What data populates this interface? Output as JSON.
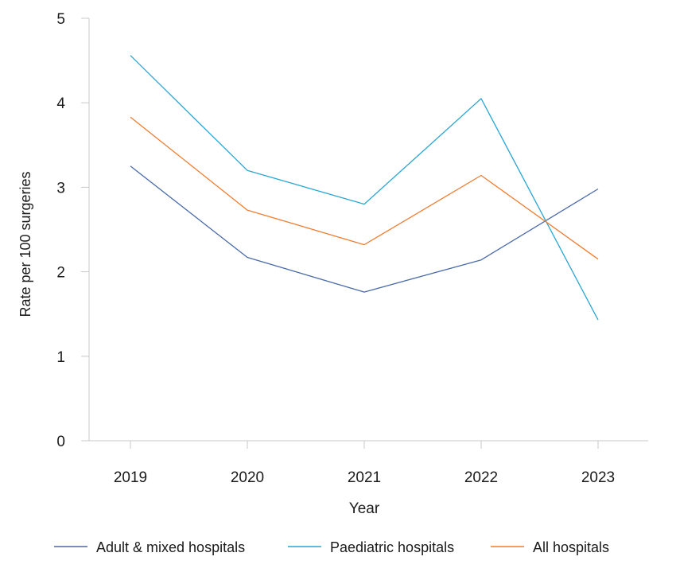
{
  "chart_data": {
    "type": "line",
    "title": "",
    "xlabel": "Year",
    "ylabel": "Rate per 100 surgeries",
    "ylim": [
      0,
      5
    ],
    "yticks": [
      0,
      1,
      2,
      3,
      4,
      5
    ],
    "categories": [
      "2019",
      "2020",
      "2021",
      "2022",
      "2023"
    ],
    "grid": false,
    "legend_position": "bottom",
    "series": [
      {
        "name": "Adult & mixed hospitals",
        "color": "#4a6aa8",
        "values": [
          3.25,
          2.17,
          1.76,
          2.14,
          2.98
        ]
      },
      {
        "name": "Paediatric hospitals",
        "color": "#2aa6d2",
        "values": [
          4.56,
          3.2,
          2.8,
          4.05,
          1.43
        ]
      },
      {
        "name": "All hospitals",
        "color": "#ee7d31",
        "values": [
          3.83,
          2.73,
          2.32,
          3.14,
          2.15
        ]
      }
    ]
  }
}
